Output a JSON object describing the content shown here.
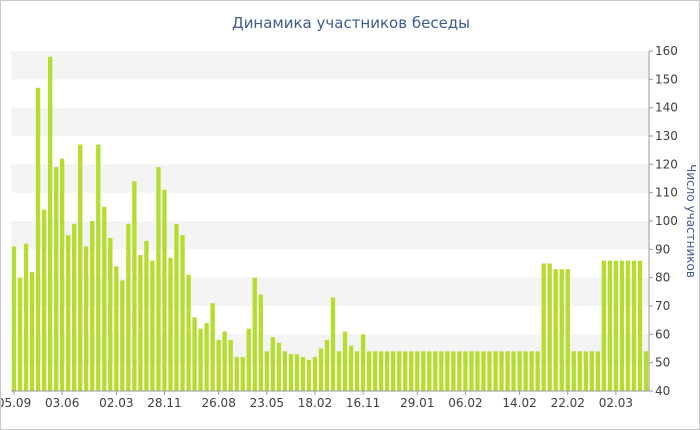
{
  "chart_data": {
    "type": "bar",
    "title": "Динамика участников беседы",
    "xlabel": "",
    "ylabel": "Число участников",
    "ylim": [
      40,
      160
    ],
    "yticks": [
      40,
      50,
      60,
      70,
      80,
      90,
      100,
      110,
      120,
      130,
      140,
      150,
      160
    ],
    "y_axis_side": "right",
    "grid": "alternating horizontal bands",
    "legend": "none",
    "bar_color": "#b5dc2e",
    "x_tick_labels": [
      {
        "label": "05.09",
        "index": 0
      },
      {
        "label": "03.06",
        "index": 8
      },
      {
        "label": "02.03",
        "index": 17
      },
      {
        "label": "28.11",
        "index": 25
      },
      {
        "label": "26.08",
        "index": 34
      },
      {
        "label": "23.05",
        "index": 42
      },
      {
        "label": "18.02",
        "index": 50
      },
      {
        "label": "16.11",
        "index": 58
      },
      {
        "label": "29.01",
        "index": 67
      },
      {
        "label": "06.02",
        "index": 75
      },
      {
        "label": "14.02",
        "index": 84
      },
      {
        "label": "22.02",
        "index": 92
      },
      {
        "label": "02.03",
        "index": 100
      }
    ],
    "values": [
      91,
      80,
      92,
      82,
      147,
      104,
      158,
      119,
      122,
      95,
      99,
      127,
      91,
      100,
      127,
      105,
      94,
      84,
      79,
      99,
      114,
      88,
      93,
      86,
      119,
      111,
      87,
      99,
      95,
      81,
      66,
      62,
      64,
      71,
      58,
      61,
      58,
      52,
      52,
      62,
      80,
      74,
      54,
      59,
      57,
      54,
      53,
      53,
      52,
      51,
      52,
      55,
      58,
      73,
      54,
      61,
      56,
      54,
      60,
      54,
      54,
      54,
      54,
      54,
      54,
      54,
      54,
      54,
      54,
      54,
      54,
      54,
      54,
      54,
      54,
      54,
      54,
      54,
      54,
      54,
      54,
      54,
      54,
      54,
      54,
      54,
      54,
      54,
      85,
      85,
      83,
      83,
      83,
      54,
      54,
      54,
      54,
      54,
      86,
      86,
      86,
      86,
      86,
      86,
      86,
      54
    ]
  }
}
